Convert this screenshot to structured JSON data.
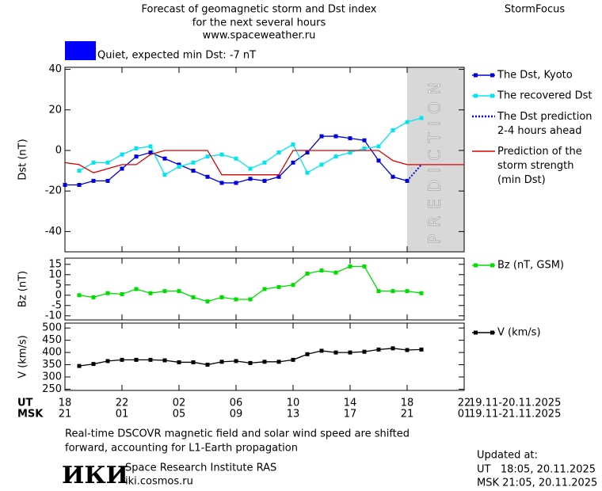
{
  "header": {
    "title_lines": [
      "Forecast of geomagnetic storm and Dst index",
      "for the next several hours",
      "www.spaceweather.ru"
    ],
    "brand": "StormFocus",
    "status": "Quiet, expected min Dst: -7 nT",
    "status_color": "#0000ff"
  },
  "chart_data": [
    {
      "type": "line",
      "ylabel": "Dst (nT)",
      "xlim": [
        0,
        28
      ],
      "ylim": [
        -50,
        41
      ],
      "yticks": [
        40,
        20,
        0,
        -20,
        -40
      ],
      "shaded_region": {
        "x": [
          24,
          28
        ],
        "label": "PREDICTION"
      },
      "series": [
        {
          "name": "The Dst, Kyoto",
          "color": "#0000dd",
          "marker": "square",
          "line_style": "solid",
          "x": [
            0,
            1,
            2,
            3,
            4,
            5,
            6,
            7,
            8,
            9,
            10,
            11,
            12,
            13,
            14,
            15,
            16,
            17,
            18,
            19,
            20,
            21,
            22,
            23,
            24
          ],
          "values": [
            -17,
            -17,
            -15,
            -15,
            -9,
            -3,
            -1,
            -4,
            -7,
            -10,
            -13,
            -16,
            -16,
            -14,
            -15,
            -13,
            -6,
            -1,
            7,
            7,
            6,
            5,
            -5,
            -13,
            -15
          ]
        },
        {
          "name": "The recovered Dst",
          "color": "#00e5ee",
          "marker": "square",
          "line_style": "solid",
          "x": [
            1,
            2,
            3,
            4,
            5,
            6,
            7,
            8,
            9,
            10,
            11,
            12,
            13,
            14,
            15,
            16,
            17,
            18,
            19,
            20,
            21,
            22,
            23,
            24,
            25
          ],
          "values": [
            -10,
            -6,
            -6,
            -2,
            1,
            2,
            -12,
            -8,
            -6,
            -3,
            -2,
            -4,
            -9,
            -6,
            -1,
            3,
            -11,
            -7,
            -3,
            -1,
            1,
            2,
            10,
            14,
            16
          ]
        },
        {
          "name": "The Dst prediction\n2-4 hours ahead",
          "color": "#0000dd",
          "marker": "none",
          "line_style": "dotted",
          "x": [
            24,
            25
          ],
          "values": [
            -15,
            -7
          ]
        },
        {
          "name": "Prediction of the\nstorm strength\n(min Dst)",
          "color": "#dd0000",
          "marker": "none",
          "line_style": "solid",
          "x": [
            0,
            1,
            2,
            3,
            4,
            5,
            6,
            7,
            10,
            11,
            15,
            16,
            22,
            23,
            24,
            28
          ],
          "values": [
            -6,
            -7,
            -11,
            -9,
            -7,
            -7,
            -2,
            0,
            0,
            -12,
            -12,
            0,
            0,
            -5,
            -7,
            -7
          ]
        }
      ]
    },
    {
      "type": "line",
      "ylabel": "Bz (nT)",
      "xlim": [
        0,
        28
      ],
      "ylim": [
        -12,
        18
      ],
      "yticks": [
        15,
        10,
        5,
        0,
        -5,
        -10
      ],
      "series": [
        {
          "name": "Bz (nT, GSM)",
          "color": "#00dd00",
          "marker": "square",
          "line_style": "solid",
          "x": [
            1,
            2,
            3,
            4,
            5,
            6,
            7,
            8,
            9,
            10,
            11,
            12,
            13,
            14,
            15,
            16,
            17,
            18,
            19,
            20,
            21,
            22,
            23,
            24,
            25
          ],
          "values": [
            0,
            -1,
            1,
            0.5,
            3,
            1,
            2,
            2,
            -1,
            -3,
            -1,
            -2,
            -2,
            3,
            4,
            5,
            10.5,
            12,
            11,
            14,
            14,
            2,
            2,
            2,
            1
          ]
        }
      ]
    },
    {
      "type": "line",
      "ylabel": "V (km/s)",
      "xlim": [
        0,
        28
      ],
      "ylim": [
        245,
        520
      ],
      "yticks": [
        500,
        450,
        400,
        350,
        300,
        250
      ],
      "xticks": [
        {
          "value": 0,
          "label": "18"
        },
        {
          "value": 4,
          "label": "22"
        },
        {
          "value": 8,
          "label": "02"
        },
        {
          "value": 12,
          "label": "06"
        },
        {
          "value": 16,
          "label": "10"
        },
        {
          "value": 20,
          "label": "14"
        },
        {
          "value": 24,
          "label": "18"
        },
        {
          "value": 28,
          "label": "22"
        }
      ],
      "xticks_msk": [
        {
          "value": 0,
          "label": "21"
        },
        {
          "value": 4,
          "label": "01"
        },
        {
          "value": 8,
          "label": "05"
        },
        {
          "value": 12,
          "label": "09"
        },
        {
          "value": 16,
          "label": "13"
        },
        {
          "value": 20,
          "label": "17"
        },
        {
          "value": 24,
          "label": "21"
        },
        {
          "value": 28,
          "label": "01"
        }
      ],
      "xaxis_ut": "UT",
      "xaxis_msk": "MSK",
      "range_ut": "19.11-20.11.2025",
      "range_msk": "19.11-21.11.2025",
      "series": [
        {
          "name": "V (km/s)",
          "color": "#000000",
          "marker": "square",
          "line_style": "solid",
          "x": [
            1,
            2,
            3,
            4,
            5,
            6,
            7,
            8,
            9,
            10,
            11,
            12,
            13,
            14,
            15,
            16,
            17,
            18,
            19,
            20,
            21,
            22,
            23,
            24,
            25
          ],
          "values": [
            345,
            353,
            365,
            370,
            370,
            370,
            368,
            360,
            360,
            350,
            362,
            365,
            357,
            362,
            362,
            370,
            393,
            407,
            400,
            400,
            403,
            412,
            417,
            410,
            412
          ]
        }
      ]
    }
  ],
  "footer": {
    "note_lines": [
      "Real-time DSCOVR magnetic field and solar wind speed are shifted",
      "forward, accounting for L1-Earth propagation"
    ],
    "logo": "ИКИ",
    "institute": "Space Research Institute RAS",
    "site": "iki.cosmos.ru",
    "updated_lines": [
      "Updated at:",
      "UT   18:05, 20.11.2025",
      "MSK 21:05, 20.11.2025"
    ]
  }
}
